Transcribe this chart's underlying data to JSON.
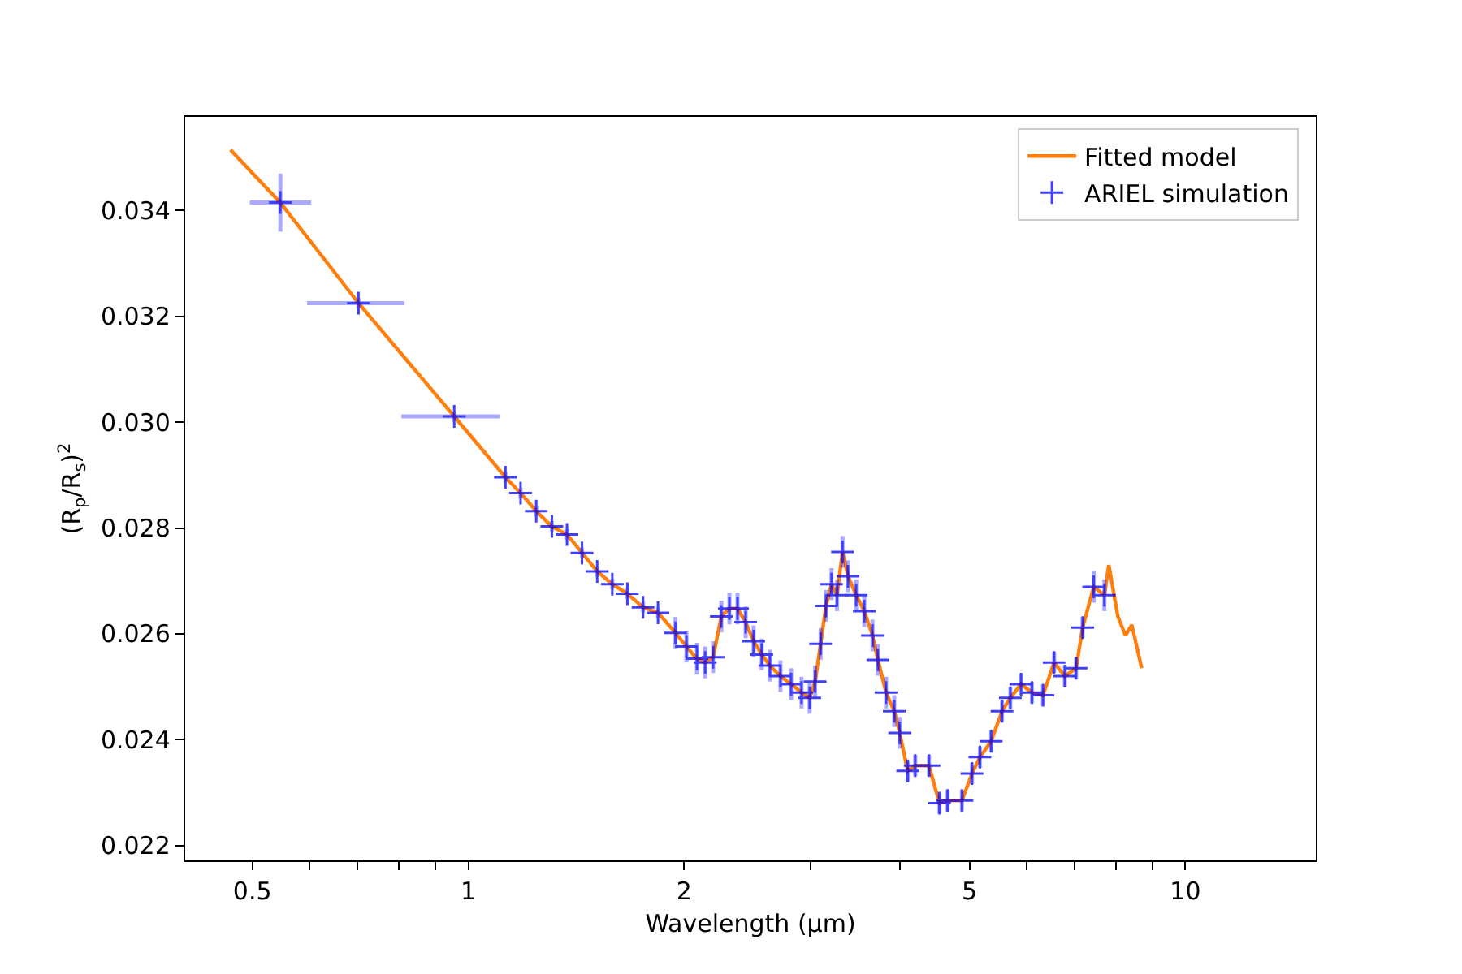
{
  "chart_data": {
    "type": "line",
    "xlabel": "Wavelength (μm)",
    "ylabel": "(R$_{p}$/R$_{s}$)$^{2}$",
    "log": "x",
    "xlim": [
      0.403,
      15.2
    ],
    "ylim": [
      0.02172,
      0.03577
    ],
    "xticks": [
      {
        "value": 0.5,
        "label": "0.5"
      },
      {
        "value": 0.6,
        "label": null
      },
      {
        "value": 0.7,
        "label": null
      },
      {
        "value": 0.8,
        "label": null
      },
      {
        "value": 0.9,
        "label": null
      },
      1,
      2,
      {
        "value": 3,
        "label": null
      },
      {
        "value": 4,
        "label": null
      },
      5,
      {
        "value": 6,
        "label": null
      },
      {
        "value": 7,
        "label": null
      },
      {
        "value": 8,
        "label": null
      },
      {
        "value": 9,
        "label": null
      },
      10
    ],
    "yticks": [
      {
        "value": 0.022,
        "label": "0.022"
      },
      {
        "value": 0.024,
        "label": "0.024"
      },
      {
        "value": 0.026,
        "label": "0.026"
      },
      {
        "value": 0.028,
        "label": "0.028"
      },
      {
        "value": 0.03,
        "label": "0.030"
      },
      {
        "value": 0.032,
        "label": "0.032"
      },
      {
        "value": 0.034,
        "label": "0.034"
      }
    ],
    "grid": false,
    "legend": "top right",
    "series": [
      {
        "name": "Fitted model",
        "color": "#ff7f0e",
        "marker": "none",
        "line_style": "solid",
        "x": [
          0.466,
          0.547,
          0.703,
          0.956,
          1.127,
          1.183,
          1.244,
          1.308,
          1.373,
          1.441,
          1.513,
          1.588,
          1.667,
          1.753,
          1.839,
          1.945,
          2.015,
          2.084,
          2.14,
          2.195,
          2.254,
          2.313,
          2.374,
          2.437,
          2.5,
          2.566,
          2.634,
          2.725,
          2.82,
          2.916,
          2.993,
          3.046,
          3.1,
          3.154,
          3.21,
          3.268,
          3.326,
          3.385,
          3.475,
          3.567,
          3.662,
          3.726,
          3.825,
          3.927,
          3.996,
          4.1,
          4.2,
          4.39,
          4.54,
          4.66,
          4.88,
          5.04,
          5.17,
          5.36,
          5.55,
          5.7,
          5.9,
          6.11,
          6.33,
          6.56,
          6.79,
          7.04,
          7.19,
          7.45,
          7.71,
          7.82,
          8.05,
          8.25,
          8.42,
          8.69
        ],
        "values": [
          0.03515,
          0.03415,
          0.03225,
          0.03011,
          0.02896,
          0.02866,
          0.02832,
          0.02803,
          0.02788,
          0.02753,
          0.02718,
          0.02694,
          0.02676,
          0.0265,
          0.0264,
          0.02602,
          0.02576,
          0.02553,
          0.02546,
          0.02556,
          0.02633,
          0.02648,
          0.02648,
          0.02622,
          0.02586,
          0.02561,
          0.0254,
          0.0252,
          0.02505,
          0.02489,
          0.02479,
          0.0251,
          0.02581,
          0.02653,
          0.02694,
          0.02673,
          0.02755,
          0.02709,
          0.02673,
          0.02643,
          0.02597,
          0.02551,
          0.02489,
          0.02454,
          0.02413,
          0.02341,
          0.02351,
          0.02351,
          0.0228,
          0.02285,
          0.02285,
          0.02336,
          0.02367,
          0.02397,
          0.02454,
          0.02479,
          0.02505,
          0.02489,
          0.02484,
          0.02546,
          0.0252,
          0.02535,
          0.02612,
          0.02689,
          0.02673,
          0.0273,
          0.02633,
          0.02597,
          0.02617,
          0.02535
        ]
      },
      {
        "name": "ARIEL simulation",
        "type": "scatter",
        "color": "#0000ff",
        "marker": "cross",
        "x": [
          0.547,
          0.703,
          0.956,
          1.127,
          1.183,
          1.244,
          1.308,
          1.373,
          1.441,
          1.513,
          1.588,
          1.667,
          1.753,
          1.839,
          1.945,
          2.015,
          2.084,
          2.14,
          2.195,
          2.254,
          2.313,
          2.374,
          2.437,
          2.5,
          2.566,
          2.634,
          2.725,
          2.82,
          2.916,
          2.993,
          3.046,
          3.1,
          3.154,
          3.21,
          3.268,
          3.326,
          3.385,
          3.475,
          3.567,
          3.662,
          3.726,
          3.825,
          3.927,
          3.996,
          4.1,
          4.2,
          4.39,
          4.54,
          4.66,
          4.88,
          5.04,
          5.17,
          5.36,
          5.55,
          5.7,
          5.9,
          6.11,
          6.33,
          6.56,
          6.79,
          7.04,
          7.19,
          7.45,
          7.71
        ],
        "values": [
          0.03415,
          0.03225,
          0.03011,
          0.02896,
          0.02866,
          0.02832,
          0.02803,
          0.02788,
          0.02753,
          0.02718,
          0.02694,
          0.02676,
          0.0265,
          0.0264,
          0.02602,
          0.02576,
          0.02553,
          0.02546,
          0.02556,
          0.02633,
          0.02648,
          0.02648,
          0.02622,
          0.02586,
          0.02561,
          0.0254,
          0.0252,
          0.02505,
          0.02489,
          0.02479,
          0.0251,
          0.02581,
          0.02653,
          0.02694,
          0.02673,
          0.02755,
          0.02709,
          0.02673,
          0.02643,
          0.02597,
          0.02551,
          0.02489,
          0.02454,
          0.02413,
          0.02341,
          0.02351,
          0.02351,
          0.0228,
          0.02285,
          0.02285,
          0.02336,
          0.02367,
          0.02397,
          0.02454,
          0.02479,
          0.02505,
          0.02489,
          0.02484,
          0.02546,
          0.0252,
          0.02535,
          0.02612,
          0.02689,
          0.02673
        ],
        "errors": [
          0.00055,
          0.0001,
          0.0001,
          0.0001,
          0.0001,
          0.0001,
          0.0001,
          0.0001,
          0.0001,
          0.0001,
          0.0001,
          0.0001,
          0.0001,
          0.0001,
          0.0003,
          0.0003,
          0.0003,
          0.0003,
          0.0003,
          0.0003,
          0.0003,
          0.0003,
          0.0003,
          0.0003,
          0.0003,
          0.0003,
          0.0003,
          0.0003,
          0.0003,
          0.0003,
          0.0003,
          0.0003,
          0.0003,
          0.0003,
          0.0003,
          0.0003,
          0.0003,
          0.0003,
          0.0003,
          0.0003,
          0.0003,
          0.0003,
          0.0003,
          0.0003,
          0.0002,
          0.0002,
          0.0002,
          0.0002,
          0.0002,
          0.0002,
          0.0002,
          0.0002,
          0.0002,
          0.0002,
          0.0002,
          0.0002,
          0.0002,
          0.0002,
          0.0002,
          0.0002,
          0.0002,
          0.0002,
          0.0003,
          0.0003
        ],
        "xerrors": [
          [
            0.496,
            0.604
          ],
          [
            0.596,
            0.815
          ],
          [
            0.807,
            1.108
          ],
          null,
          null,
          null,
          null,
          null,
          null,
          null,
          null,
          null,
          null,
          null,
          null,
          null,
          null,
          null,
          null,
          null,
          null,
          null,
          null,
          null,
          null,
          null,
          null,
          null,
          null,
          null,
          null,
          null,
          null,
          null,
          null,
          null,
          null,
          null,
          null,
          null,
          null,
          null,
          null,
          null,
          null,
          null,
          null,
          null,
          null,
          null,
          null,
          null,
          null,
          null,
          null,
          null,
          null,
          null,
          null,
          null,
          null,
          null,
          null,
          null
        ]
      }
    ]
  }
}
